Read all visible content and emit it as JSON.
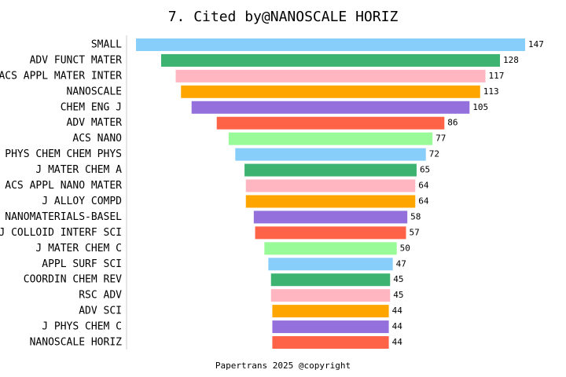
{
  "chart_data": {
    "type": "funnel",
    "title": "7. Cited by@NANOSCALE HORIZ",
    "footer": "Papertrans 2025 @copyright",
    "categories": [
      "SMALL",
      "ADV FUNCT MATER",
      "ACS APPL MATER INTER",
      "NANOSCALE",
      "CHEM ENG J",
      "ADV MATER",
      "ACS NANO",
      "PHYS CHEM CHEM PHYS",
      "J MATER CHEM A",
      "ACS APPL NANO MATER",
      "J ALLOY COMPD",
      "NANOMATERIALS-BASEL",
      "J COLLOID INTERF SCI",
      "J MATER CHEM C",
      "APPL SURF SCI",
      "COORDIN CHEM REV",
      "RSC ADV",
      "ADV SCI",
      "J PHYS CHEM C",
      "NANOSCALE HORIZ"
    ],
    "values": [
      147,
      128,
      117,
      113,
      105,
      86,
      77,
      72,
      65,
      64,
      64,
      58,
      57,
      50,
      47,
      45,
      45,
      44,
      44,
      44
    ],
    "colors": [
      "#87cefa",
      "#3cb371",
      "#ffb6c1",
      "#ffa500",
      "#9370db",
      "#ff6347",
      "#98fb98"
    ]
  }
}
